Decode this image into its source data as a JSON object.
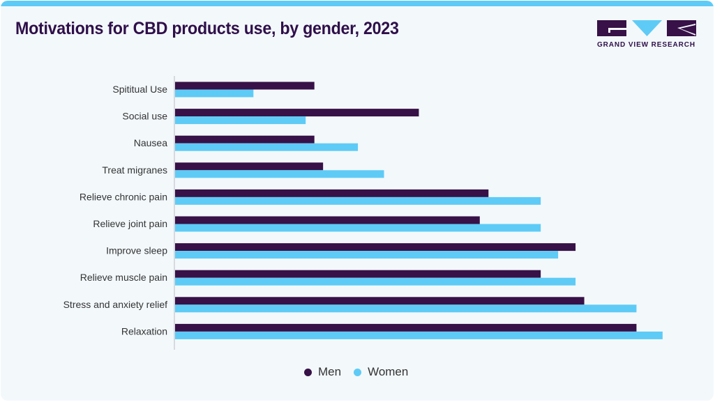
{
  "header": {
    "title": "Motivations for CBD products use, by gender, 2023",
    "brand": "GRAND VIEW RESEARCH"
  },
  "colors": {
    "men": "#371147",
    "women": "#5ecbf6",
    "title": "#2f0f4a",
    "accent_bar": "#5ecbf6",
    "background": "#f3f8fb"
  },
  "chart_data": {
    "type": "bar",
    "orientation": "horizontal",
    "title": "Motivations for CBD products use, by gender, 2023",
    "xlabel": "",
    "ylabel": "",
    "unit": "%",
    "xlim": [
      0,
      60
    ],
    "grid": false,
    "legend_position": "bottom-center",
    "categories": [
      "Spititual Use",
      "Social use",
      "Nausea",
      "Treat migranes",
      "Relieve chronic pain",
      "Relieve joint pain",
      "Improve sleep",
      "Relieve muscle pain",
      "Stress and anxiety relief",
      "Relaxation"
    ],
    "series": [
      {
        "name": "Men",
        "color": "#371147",
        "values": [
          16,
          28,
          16,
          17,
          36,
          35,
          46,
          42,
          47,
          53
        ]
      },
      {
        "name": "Women",
        "color": "#5ecbf6",
        "values": [
          9,
          15,
          21,
          24,
          42,
          42,
          44,
          46,
          53,
          56
        ]
      }
    ]
  }
}
